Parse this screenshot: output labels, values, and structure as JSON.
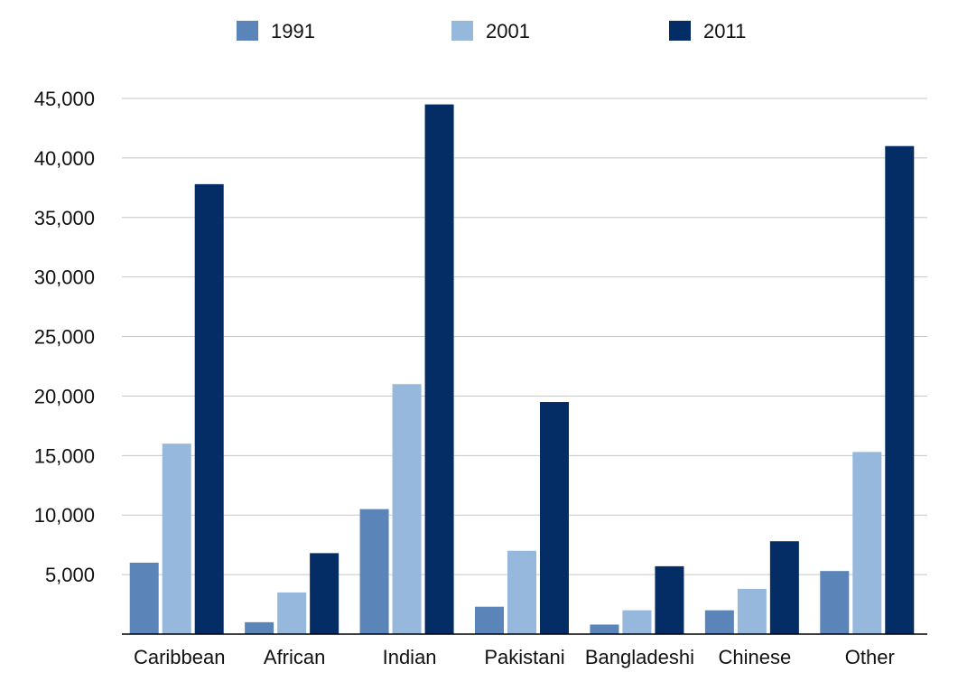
{
  "chart_data": {
    "type": "bar",
    "title": "",
    "xlabel": "",
    "ylabel": "",
    "ylim": [
      0,
      45000
    ],
    "y_ticks": [
      5000,
      10000,
      15000,
      20000,
      25000,
      30000,
      35000,
      40000,
      45000
    ],
    "y_tick_labels": [
      "5,000",
      "10,000",
      "15,000",
      "20,000",
      "25,000",
      "30,000",
      "35,000",
      "40,000",
      "45,000"
    ],
    "grid": true,
    "legend_position": "top",
    "categories": [
      "Caribbean",
      "African",
      "Indian",
      "Pakistani",
      "Bangladeshi",
      "Chinese",
      "Other"
    ],
    "series": [
      {
        "name": "1991",
        "color": "#5b84b8",
        "values": [
          6000,
          1000,
          10500,
          2300,
          800,
          2000,
          5300
        ]
      },
      {
        "name": "2001",
        "color": "#95b8dc",
        "values": [
          16000,
          3500,
          21000,
          7000,
          2000,
          3800,
          15300
        ]
      },
      {
        "name": "2011",
        "color": "#032d64",
        "values": [
          37800,
          6800,
          44500,
          19500,
          5700,
          7800,
          41000
        ]
      }
    ]
  }
}
